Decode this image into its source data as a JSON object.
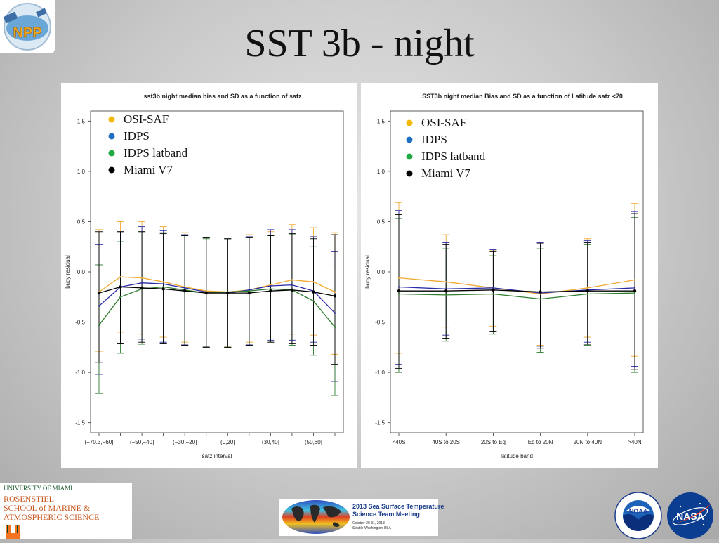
{
  "slide": {
    "title": "SST 3b - night"
  },
  "logos": {
    "npp_text": "NPP",
    "um_line1": "UNIVERSITY OF MIAMI",
    "um_line2": "ROSENSTIEL",
    "um_line3": "SCHOOL of MARINE &",
    "um_line4": "ATMOSPHERIC SCIENCE",
    "meeting_line1": "2013 Sea Surface Temperature",
    "meeting_line2": "Science Team Meeting",
    "meeting_line3": "October 29-31, 2013",
    "meeting_line4": "Seattle Washington  USA",
    "noaa_text": "NOAA",
    "nasa_text": "NASA"
  },
  "colors": {
    "osisaf": "#f0a830",
    "idps": "#2a2aa8",
    "idps_latband": "#2e7d2e",
    "miami": "#000000",
    "legend_osisaf": "#f5b800",
    "legend_idps": "#1f6fc0",
    "legend_latband": "#22aa44",
    "legend_miami": "#000000"
  },
  "chart_data": [
    {
      "type": "line",
      "title": "sst3b night median bias and SD as a function of satz",
      "xlabel": "satz interval",
      "ylabel": "buoy residual",
      "ylim": [
        -1.6,
        1.6
      ],
      "yticks": [
        "-1.5",
        "-1.0",
        "-0.5",
        "0.0",
        "0.5",
        "1.0",
        "1.5"
      ],
      "ytick_values": [
        -1.5,
        -1.0,
        -0.5,
        0.0,
        0.5,
        1.0,
        1.5
      ],
      "x_count": 12,
      "xtick_labels": [
        {
          "i": 0,
          "label": "(−70.3,−60]"
        },
        {
          "i": 2,
          "label": "(−50,−40]"
        },
        {
          "i": 4,
          "label": "(−30,−20]"
        },
        {
          "i": 6,
          "label": "(0,20]"
        },
        {
          "i": 8,
          "label": "(30,40]"
        },
        {
          "i": 10,
          "label": "(50,60]"
        }
      ],
      "reference_line": -0.2,
      "legend": [
        "OSI-SAF",
        "IDPS",
        "IDPS latband",
        "Miami V7"
      ],
      "series": [
        {
          "name": "OSI-SAF",
          "values": [
            -0.2,
            -0.05,
            -0.06,
            -0.1,
            -0.15,
            -0.19,
            -0.2,
            -0.18,
            -0.13,
            -0.08,
            -0.1,
            -0.2
          ],
          "upper": [
            0.42,
            0.5,
            0.5,
            0.45,
            0.39,
            0.34,
            0.33,
            0.37,
            0.4,
            0.47,
            0.44,
            0.39
          ],
          "lower": [
            -0.79,
            -0.6,
            -0.62,
            -0.65,
            -0.7,
            -0.74,
            -0.74,
            -0.7,
            -0.64,
            -0.62,
            -0.63,
            -0.82
          ]
        },
        {
          "name": "IDPS",
          "values": [
            -0.34,
            -0.15,
            -0.11,
            -0.12,
            -0.16,
            -0.2,
            -0.21,
            -0.18,
            -0.14,
            -0.13,
            -0.19,
            -0.41
          ],
          "upper": [
            0.27,
            0.4,
            0.45,
            0.41,
            0.37,
            0.34,
            0.33,
            0.35,
            0.42,
            0.42,
            0.35,
            0.2
          ],
          "lower": [
            -1.02,
            -0.71,
            -0.67,
            -0.7,
            -0.72,
            -0.74,
            -0.75,
            -0.72,
            -0.68,
            -0.68,
            -0.7,
            -1.09
          ]
        },
        {
          "name": "IDPS latband",
          "values": [
            -0.53,
            -0.25,
            -0.17,
            -0.15,
            -0.18,
            -0.21,
            -0.2,
            -0.19,
            -0.17,
            -0.18,
            -0.29,
            -0.55
          ],
          "upper": [
            0.07,
            0.3,
            0.4,
            0.39,
            0.36,
            0.33,
            0.33,
            0.34,
            0.36,
            0.37,
            0.25,
            0.06
          ],
          "lower": [
            -1.21,
            -0.81,
            -0.72,
            -0.71,
            -0.73,
            -0.75,
            -0.75,
            -0.73,
            -0.7,
            -0.73,
            -0.83,
            -1.23
          ]
        },
        {
          "name": "Miami V7",
          "values": [
            -0.21,
            -0.15,
            -0.16,
            -0.17,
            -0.19,
            -0.21,
            -0.21,
            -0.21,
            -0.19,
            -0.18,
            -0.2,
            -0.24
          ],
          "upper": [
            0.4,
            0.4,
            0.4,
            0.38,
            0.36,
            0.34,
            0.33,
            0.34,
            0.36,
            0.38,
            0.33,
            0.37
          ],
          "lower": [
            -0.9,
            -0.71,
            -0.7,
            -0.71,
            -0.73,
            -0.75,
            -0.75,
            -0.73,
            -0.7,
            -0.71,
            -0.73,
            -0.92
          ]
        }
      ]
    },
    {
      "type": "line",
      "title": "SST3b night median Bias and SD as a function of Latitude satz <70",
      "xlabel": "latitude band",
      "ylabel": "buoy residual",
      "ylim": [
        -1.6,
        1.6
      ],
      "yticks": [
        "-1.5",
        "-1.0",
        "-0.5",
        "0.0",
        "0.5",
        "1.0",
        "1.5"
      ],
      "ytick_values": [
        -1.5,
        -1.0,
        -0.5,
        0.0,
        0.5,
        1.0,
        1.5
      ],
      "x_count": 6,
      "xtick_labels": [
        {
          "i": 0,
          "label": "<40S"
        },
        {
          "i": 1,
          "label": "40S to 20S"
        },
        {
          "i": 2,
          "label": "20S to Eq"
        },
        {
          "i": 3,
          "label": "Eq to 20N"
        },
        {
          "i": 4,
          "label": "20N to 40N"
        },
        {
          "i": 5,
          "label": ">40N"
        }
      ],
      "reference_line": -0.2,
      "legend": [
        "OSI-SAF",
        "IDPS",
        "IDPS latband",
        "Miami V7"
      ],
      "series": [
        {
          "name": "OSI-SAF",
          "values": [
            -0.06,
            -0.1,
            -0.16,
            -0.22,
            -0.16,
            -0.08
          ],
          "upper": [
            0.69,
            0.37,
            0.21,
            0.29,
            0.33,
            0.68
          ],
          "lower": [
            -0.81,
            -0.55,
            -0.54,
            -0.73,
            -0.65,
            -0.84
          ]
        },
        {
          "name": "IDPS",
          "values": [
            -0.15,
            -0.17,
            -0.16,
            -0.21,
            -0.18,
            -0.16
          ],
          "upper": [
            0.61,
            0.29,
            0.22,
            0.29,
            0.31,
            0.6
          ],
          "lower": [
            -0.92,
            -0.63,
            -0.57,
            -0.74,
            -0.7,
            -0.94
          ]
        },
        {
          "name": "IDPS latband",
          "values": [
            -0.22,
            -0.23,
            -0.22,
            -0.27,
            -0.22,
            -0.21
          ],
          "upper": [
            0.53,
            0.23,
            0.16,
            0.23,
            0.27,
            0.54
          ],
          "lower": [
            -1.0,
            -0.69,
            -0.62,
            -0.8,
            -0.73,
            -1.0
          ]
        },
        {
          "name": "Miami V7",
          "values": [
            -0.19,
            -0.19,
            -0.18,
            -0.2,
            -0.19,
            -0.19
          ],
          "upper": [
            0.57,
            0.27,
            0.2,
            0.28,
            0.29,
            0.58
          ],
          "lower": [
            -0.96,
            -0.66,
            -0.59,
            -0.76,
            -0.72,
            -0.97
          ]
        }
      ]
    }
  ]
}
